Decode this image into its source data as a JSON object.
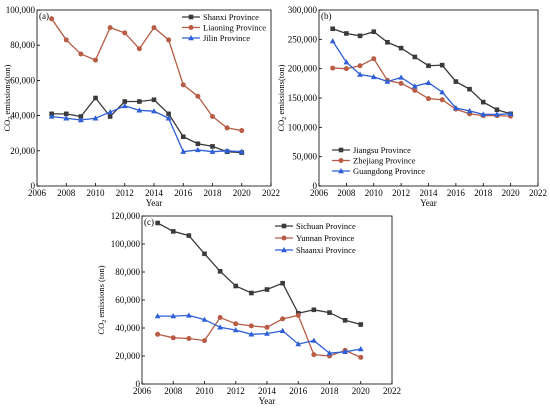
{
  "colors": {
    "series_1": "#3a3a3a",
    "series_2": "#b85c45",
    "series_3": "#2e5fd6",
    "axis": "#000000"
  },
  "chart_data": [
    {
      "type": "line",
      "panel_label": "(a)",
      "xlabel": "Year",
      "ylabel": "CO",
      "ylabel_sub": "2",
      "ylabel_tail": " emissions(ton)",
      "xlim": [
        2006,
        2022
      ],
      "ylim": [
        0,
        100000
      ],
      "xticks": [
        2006,
        2008,
        2010,
        2012,
        2014,
        2016,
        2018,
        2020,
        2022
      ],
      "yticks": [
        0,
        20000,
        40000,
        60000,
        80000,
        100000
      ],
      "ytick_labels": [
        "0",
        "20,000",
        "40,000",
        "60,000",
        "80,000",
        "100,000"
      ],
      "grid": false,
      "legend_position": "top-right",
      "x": [
        2007,
        2008,
        2009,
        2010,
        2011,
        2012,
        2013,
        2014,
        2015,
        2016,
        2017,
        2018,
        2019,
        2020
      ],
      "series": [
        {
          "name": "Shanxi Province",
          "marker": "square",
          "values": [
            41000,
            41000,
            39500,
            50000,
            39500,
            48000,
            48000,
            49000,
            41000,
            28000,
            24000,
            22500,
            19500,
            19000
          ]
        },
        {
          "name": "Liaoning Province",
          "marker": "circle",
          "values": [
            95000,
            83000,
            75000,
            71500,
            90000,
            87000,
            78000,
            90000,
            83000,
            57500,
            51000,
            39500,
            33000,
            31500
          ]
        },
        {
          "name": "Jilin Province",
          "marker": "triangle",
          "values": [
            39500,
            38500,
            37500,
            38500,
            42000,
            45500,
            43000,
            42500,
            38500,
            19500,
            20500,
            19500,
            20000,
            19500
          ]
        }
      ]
    },
    {
      "type": "line",
      "panel_label": "(b)",
      "xlabel": "Year",
      "ylabel": "CO",
      "ylabel_sub": "2",
      "ylabel_tail": " emissions(ton)",
      "xlim": [
        2006,
        2022
      ],
      "ylim": [
        0,
        300000
      ],
      "xticks": [
        2006,
        2008,
        2010,
        2012,
        2014,
        2016,
        2018,
        2020,
        2022
      ],
      "yticks": [
        0,
        50000,
        100000,
        150000,
        200000,
        250000,
        300000
      ],
      "ytick_labels": [
        "0",
        "50,000",
        "100,000",
        "150,000",
        "200,000",
        "250,000",
        "300,000"
      ],
      "grid": false,
      "legend_position": "bottom-left",
      "x": [
        2007,
        2008,
        2009,
        2010,
        2011,
        2012,
        2013,
        2014,
        2015,
        2016,
        2017,
        2018,
        2019,
        2020
      ],
      "series": [
        {
          "name": "Jiangsu Province",
          "marker": "square",
          "values": [
            268000,
            260000,
            256000,
            263000,
            245000,
            235000,
            220000,
            205000,
            206000,
            178000,
            165000,
            143000,
            130000,
            123000
          ]
        },
        {
          "name": "Zhejiang Province",
          "marker": "circle",
          "values": [
            201000,
            200000,
            205000,
            217000,
            180000,
            175000,
            163000,
            149000,
            147000,
            131000,
            123000,
            120000,
            120000,
            119000
          ]
        },
        {
          "name": "Guangdong Province",
          "marker": "triangle",
          "values": [
            247000,
            211000,
            190000,
            186000,
            178000,
            185000,
            170000,
            176000,
            160000,
            133000,
            128000,
            122000,
            122000,
            123000
          ]
        }
      ]
    },
    {
      "type": "line",
      "panel_label": "(c)",
      "xlabel": "Year",
      "ylabel": "CO",
      "ylabel_sub": "2",
      "ylabel_tail": " emissions (ton)",
      "xlim": [
        2006,
        2022
      ],
      "ylim": [
        0,
        120000
      ],
      "xticks": [
        2006,
        2008,
        2010,
        2012,
        2014,
        2016,
        2018,
        2020,
        2022
      ],
      "yticks": [
        0,
        20000,
        40000,
        60000,
        80000,
        100000,
        120000
      ],
      "ytick_labels": [
        "0",
        "20,000",
        "40,000",
        "60,000",
        "80,000",
        "100,000",
        "120,000"
      ],
      "grid": false,
      "legend_position": "top-right",
      "x": [
        2007,
        2008,
        2009,
        2010,
        2011,
        2012,
        2013,
        2014,
        2015,
        2016,
        2017,
        2018,
        2019,
        2020
      ],
      "series": [
        {
          "name": "Sichuan Province",
          "marker": "square",
          "values": [
            115000,
            109000,
            106000,
            93000,
            80500,
            70000,
            65000,
            67500,
            72000,
            50500,
            53000,
            51000,
            45500,
            42500
          ]
        },
        {
          "name": "Yunnan Province",
          "marker": "circle",
          "values": [
            35500,
            33000,
            32500,
            31000,
            47500,
            43000,
            41500,
            40500,
            46500,
            49000,
            21000,
            20000,
            24000,
            19000
          ]
        },
        {
          "name": "Shaanxi Province",
          "marker": "triangle",
          "values": [
            48500,
            48500,
            49000,
            46000,
            40500,
            38500,
            35500,
            36000,
            38000,
            28500,
            31000,
            22000,
            23000,
            25000
          ]
        }
      ]
    }
  ]
}
